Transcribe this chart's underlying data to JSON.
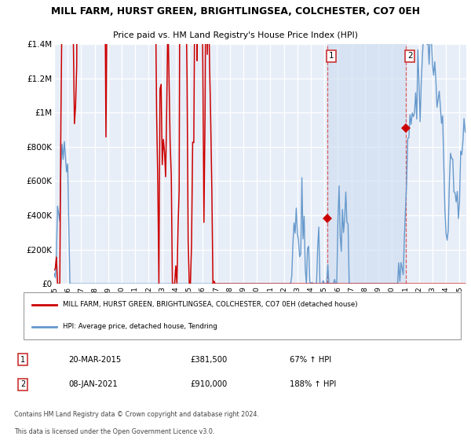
{
  "title": "MILL FARM, HURST GREEN, BRIGHTLINGSEA, COLCHESTER, CO7 0EH",
  "subtitle": "Price paid vs. HM Land Registry's House Price Index (HPI)",
  "ylabel_ticks": [
    "£0",
    "£200K",
    "£400K",
    "£600K",
    "£800K",
    "£1M",
    "£1.2M",
    "£1.4M"
  ],
  "ylabel_values": [
    0,
    200000,
    400000,
    600000,
    800000,
    1000000,
    1200000,
    1400000
  ],
  "ylim": [
    0,
    1400000
  ],
  "xlim_start": 1995.0,
  "xlim_end": 2025.5,
  "sale1": {
    "date": "20-MAR-2015",
    "year": 2015.21,
    "price": 381500,
    "label": "1",
    "pct": "67% ↑ HPI"
  },
  "sale2": {
    "date": "08-JAN-2021",
    "year": 2021.03,
    "price": 910000,
    "label": "2",
    "pct": "188% ↑ HPI"
  },
  "legend_line1": "MILL FARM, HURST GREEN, BRIGHTLINGSEA, COLCHESTER, CO7 0EH (detached house)",
  "legend_line2": "HPI: Average price, detached house, Tendring",
  "footnote1": "Contains HM Land Registry data © Crown copyright and database right 2024.",
  "footnote2": "This data is licensed under the Open Government Licence v3.0.",
  "red_color": "#cc0000",
  "blue_color": "#6699cc",
  "bg_plot": "#e8eef8",
  "bg_shaded": "#dde8f5",
  "grid_color": "#ffffff",
  "dashed_color": "#dd4444",
  "sale1_price_fmt": "£381,500",
  "sale2_price_fmt": "£910,000"
}
